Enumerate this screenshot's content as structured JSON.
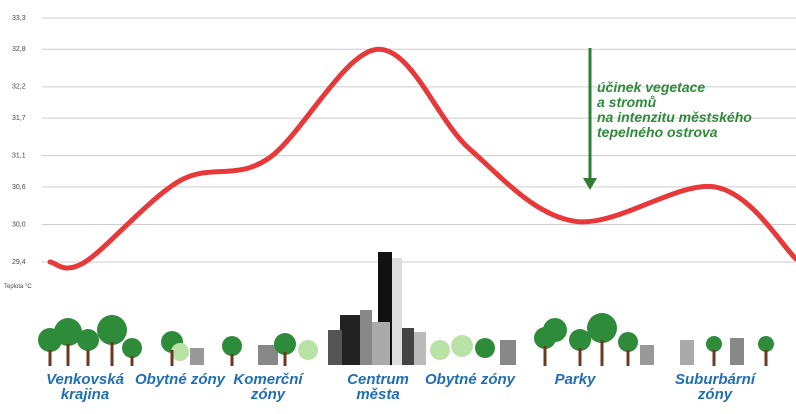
{
  "chart_data": {
    "type": "line",
    "y_label": "Teplota °C",
    "annotation": [
      "účinek vegetace",
      "a stromů",
      "na intenzitu městského",
      "tepelného ostrova"
    ],
    "categories": [
      null,
      "Venkovská krajina",
      "Obytné zóny",
      "Komerční zóny",
      "Centrum města",
      "Obytné zóny",
      "Parky",
      "Suburbární zóny",
      null
    ],
    "values": [
      29.4,
      29.4,
      30.7,
      31.05,
      32.8,
      31.2,
      30.05,
      30.6,
      29.45
    ],
    "color": "#e8393a",
    "ylim": [
      29.4,
      33.3
    ],
    "yticks": [
      {
        "value": 29.4,
        "label": "29,4"
      },
      {
        "value": 30.0,
        "label": "30,0"
      },
      {
        "value": 30.6,
        "label": "30,6"
      },
      {
        "value": 31.1,
        "label": "31,1"
      },
      {
        "value": 31.7,
        "label": "31,7"
      },
      {
        "value": 32.2,
        "label": "32,2"
      },
      {
        "value": 32.8,
        "label": "32,8"
      },
      {
        "value": 33.3,
        "label": "33,3"
      }
    ],
    "grid": true
  }
}
